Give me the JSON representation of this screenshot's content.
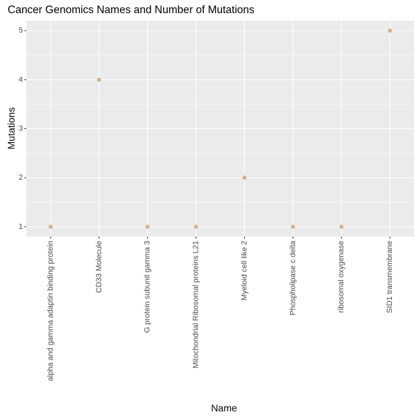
{
  "chart_data": {
    "type": "scatter",
    "title": "Cancer Genomics Names and Number of Mutations",
    "xlabel": "Name",
    "ylabel": "Mutations",
    "categories": [
      "alpha and gamma adaptin binding protein",
      "CD33 Molecule",
      "G protein subunit gamma 3",
      "Mitochondrial Ribosomal proteins L21",
      "Myeloid cell like 2",
      "Phospholipase c delta",
      "ribosomal oxygenase",
      "SID1 transmembrane"
    ],
    "values": [
      1,
      4,
      1,
      1,
      2,
      1,
      1,
      5
    ],
    "yticks": [
      1,
      2,
      3,
      4,
      5
    ],
    "ylim": [
      0.8,
      5.2
    ],
    "grid": true,
    "legend": "none",
    "point_color": "#D2B48C",
    "panel_background": "#EBEBEB",
    "grid_color": "#FFFFFF"
  }
}
